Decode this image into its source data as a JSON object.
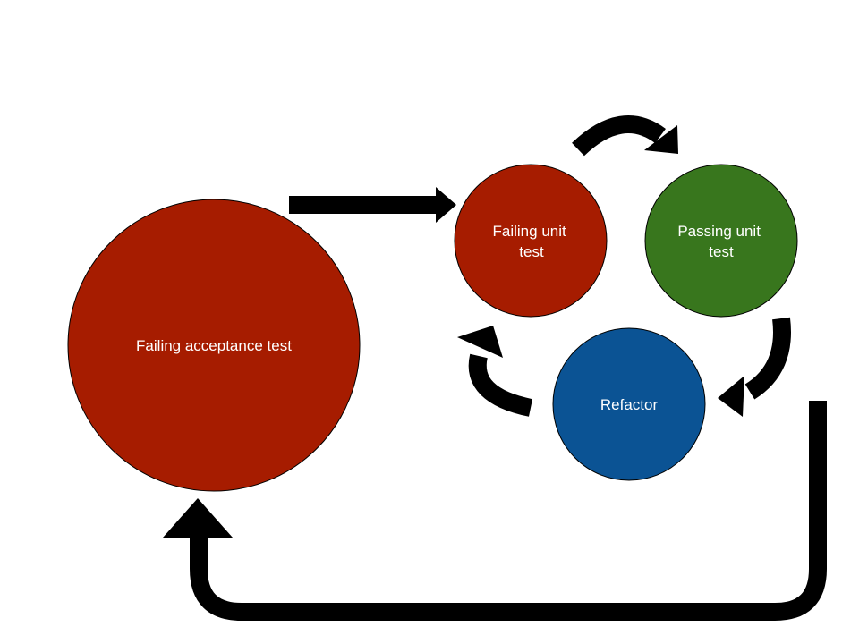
{
  "colors": {
    "failing": "#a61c00",
    "passing": "#38761d",
    "refactor": "#0b5394",
    "arrow": "#000000",
    "label": "#ffffff",
    "outline": "#000000"
  },
  "nodes": {
    "acceptance": {
      "lines": [
        "Failing acceptance test"
      ]
    },
    "failing_unit": {
      "lines": [
        "Failing unit",
        "test"
      ]
    },
    "passing_unit": {
      "lines": [
        "Passing unit",
        "test"
      ]
    },
    "refactor": {
      "lines": [
        "Refactor"
      ]
    }
  }
}
